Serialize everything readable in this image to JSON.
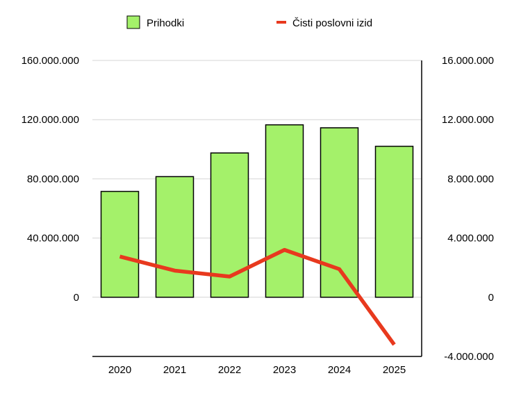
{
  "chart_data": {
    "type": "bar",
    "categories": [
      "2020",
      "2021",
      "2022",
      "2023",
      "2024",
      "2025"
    ],
    "series": [
      {
        "name": "Prihodki",
        "type": "bar",
        "axis": "left",
        "color": "#a4f16a",
        "values": [
          71500000,
          81500000,
          97500000,
          116500000,
          114500000,
          102000000
        ]
      },
      {
        "name": "Čisti poslovni izid",
        "type": "line",
        "axis": "right",
        "color": "#e8391e",
        "values": [
          2750000,
          1800000,
          1400000,
          3200000,
          1900000,
          -3200000
        ]
      }
    ],
    "y_left": {
      "range": [
        -40000000,
        160000000
      ],
      "ticks": [
        0,
        40000000,
        80000000,
        120000000,
        160000000
      ],
      "tick_labels": [
        "0",
        "40.000.000",
        "80.000.000",
        "120.000.000",
        "160.000.000"
      ]
    },
    "y_right": {
      "range": [
        -4000000,
        16000000
      ],
      "ticks": [
        -4000000,
        0,
        4000000,
        8000000,
        12000000,
        16000000
      ],
      "tick_labels": [
        "-4.000.000",
        "0",
        "4.000.000",
        "8.000.000",
        "12.000.000",
        "16.000.000"
      ]
    },
    "grid": true,
    "legend": "top-center"
  }
}
